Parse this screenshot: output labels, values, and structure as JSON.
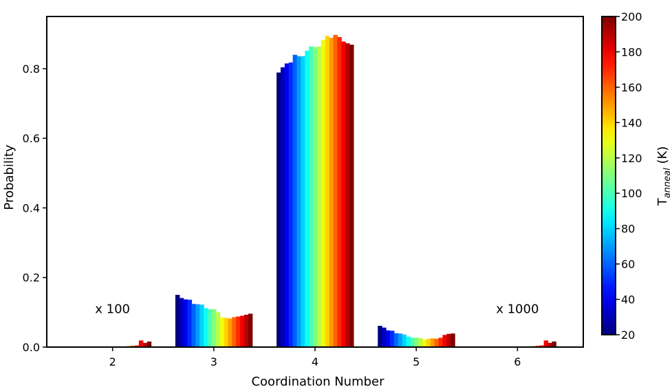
{
  "chart_data": {
    "type": "bar",
    "xlabel": "Coordination Number",
    "ylabel": "Probability",
    "categories": [
      "2",
      "3",
      "4",
      "5",
      "6"
    ],
    "x_ticks": [
      2,
      3,
      4,
      5,
      6
    ],
    "xlim": [
      1.35,
      6.65
    ],
    "ylim": [
      0,
      0.95
    ],
    "y_ticks": [
      "0.0",
      "0.2",
      "0.4",
      "0.6",
      "0.8"
    ],
    "y_tick_values": [
      0.0,
      0.2,
      0.4,
      0.6,
      0.8
    ],
    "grid": false,
    "legend": "none",
    "colorbar": {
      "label_main": "T",
      "label_sub": "anneal",
      "label_unit": " (K)",
      "min": 20,
      "max": 200,
      "ticks": [
        20,
        40,
        60,
        80,
        100,
        120,
        140,
        160,
        180,
        200
      ],
      "tick_labels": [
        "20",
        "40",
        "60",
        "80",
        "100",
        "120",
        "140",
        "160",
        "180",
        "200"
      ],
      "colormap": "jet"
    },
    "series_temperatures_K": [
      20,
      30,
      40,
      50,
      60,
      70,
      80,
      90,
      100,
      110,
      120,
      130,
      140,
      150,
      160,
      170,
      180,
      190,
      200
    ],
    "groups": [
      {
        "category": 2,
        "values": [
          0,
          0,
          0,
          0,
          0,
          0,
          0,
          0,
          0,
          0,
          0,
          0,
          0,
          0.003,
          0.004,
          0.005,
          0.019,
          0.012,
          0.016
        ]
      },
      {
        "category": 3,
        "values": [
          0.15,
          0.141,
          0.137,
          0.136,
          0.124,
          0.123,
          0.122,
          0.112,
          0.109,
          0.109,
          0.1,
          0.085,
          0.084,
          0.082,
          0.086,
          0.088,
          0.09,
          0.093,
          0.096
        ]
      },
      {
        "category": 4,
        "values": [
          0.789,
          0.804,
          0.815,
          0.818,
          0.84,
          0.836,
          0.836,
          0.852,
          0.864,
          0.862,
          0.864,
          0.883,
          0.894,
          0.889,
          0.897,
          0.891,
          0.878,
          0.873,
          0.869
        ]
      },
      {
        "category": 5,
        "values": [
          0.061,
          0.056,
          0.048,
          0.047,
          0.04,
          0.039,
          0.036,
          0.03,
          0.027,
          0.027,
          0.026,
          0.021,
          0.024,
          0.025,
          0.024,
          0.027,
          0.035,
          0.038,
          0.039
        ]
      },
      {
        "category": 6,
        "values": [
          0,
          0,
          0,
          0,
          0,
          0,
          0,
          0,
          0,
          0,
          0,
          0,
          0,
          0.003,
          0.004,
          0.005,
          0.019,
          0.012,
          0.016
        ]
      }
    ],
    "annotations": [
      {
        "text": "x 100",
        "x": 2.0,
        "y": 0.098
      },
      {
        "text": "x 1000",
        "x": 6.0,
        "y": 0.098
      }
    ]
  }
}
